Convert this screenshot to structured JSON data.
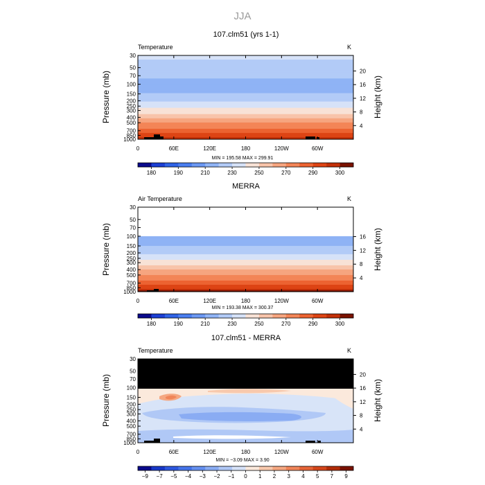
{
  "season": "JJA",
  "chart_data": [
    {
      "type": "heatmap",
      "title": "107.clm51 (yrs 1-1)",
      "left_label": "Temperature",
      "unit": "K",
      "ylabel": "Pressure (mb)",
      "ylabel_right": "Height (km)",
      "x_ticks": [
        "0",
        "60E",
        "120E",
        "180",
        "120W",
        "60W"
      ],
      "y_ticks": [
        "30",
        "50",
        "70",
        "100",
        "150",
        "200",
        "250",
        "300",
        "400",
        "500",
        "700",
        "850",
        "1000"
      ],
      "height_ticks": [
        "4",
        "8",
        "12",
        "16",
        "20"
      ],
      "stats": "MIN = 195.58   MAX = 299.91",
      "min": 195.58,
      "max": 299.91,
      "colorbar_labels": [
        "180",
        "190",
        "210",
        "230",
        "250",
        "270",
        "290",
        "300"
      ],
      "colors": [
        "#0a0a8c",
        "#1c3fd4",
        "#2f63e6",
        "#4a7ef0",
        "#6b98f3",
        "#8fb3f5",
        "#b2cbf7",
        "#d6e2f8",
        "#f8e2d6",
        "#f8c4aa",
        "#f6a57f",
        "#f38557",
        "#ec6331",
        "#dd4414",
        "#c23008",
        "#7a1200"
      ],
      "contour_levels": [
        175,
        180,
        185,
        190,
        200,
        210,
        220,
        230,
        240,
        250,
        260,
        270,
        280,
        290,
        295,
        300
      ],
      "profile": [
        {
          "p": 30,
          "value": 222
        },
        {
          "p": 50,
          "value": 217
        },
        {
          "p": 70,
          "value": 212
        },
        {
          "p": 100,
          "value": 203
        },
        {
          "p": 150,
          "value": 210
        },
        {
          "p": 200,
          "value": 218
        },
        {
          "p": 250,
          "value": 226
        },
        {
          "p": 300,
          "value": 234
        },
        {
          "p": 400,
          "value": 248
        },
        {
          "p": 500,
          "value": 259
        },
        {
          "p": 700,
          "value": 275
        },
        {
          "p": 850,
          "value": 286
        },
        {
          "p": 1000,
          "value": 296
        }
      ],
      "missing_above_p": null
    },
    {
      "type": "heatmap",
      "title": "MERRA",
      "left_label": "Air Temperature",
      "unit": "K",
      "ylabel": "Pressure (mb)",
      "ylabel_right": "Height (km)",
      "x_ticks": [
        "0",
        "60E",
        "120E",
        "180",
        "120W",
        "60W"
      ],
      "y_ticks": [
        "30",
        "50",
        "70",
        "100",
        "150",
        "200",
        "250",
        "300",
        "400",
        "500",
        "700",
        "850",
        "1000"
      ],
      "height_ticks": [
        "4",
        "8",
        "12",
        "16"
      ],
      "stats": "MIN = 193.38   MAX = 300.37",
      "min": 193.38,
      "max": 300.37,
      "colorbar_labels": [
        "180",
        "190",
        "210",
        "230",
        "250",
        "270",
        "290",
        "300"
      ],
      "colors": [
        "#0a0a8c",
        "#1c3fd4",
        "#2f63e6",
        "#4a7ef0",
        "#6b98f3",
        "#8fb3f5",
        "#b2cbf7",
        "#d6e2f8",
        "#f8e2d6",
        "#f8c4aa",
        "#f6a57f",
        "#f38557",
        "#ec6331",
        "#dd4414",
        "#c23008",
        "#7a1200"
      ],
      "contour_levels": [
        175,
        180,
        185,
        190,
        200,
        210,
        220,
        230,
        240,
        250,
        260,
        270,
        280,
        290,
        295,
        300
      ],
      "profile": [
        {
          "p": 100,
          "value": 202
        },
        {
          "p": 150,
          "value": 210
        },
        {
          "p": 200,
          "value": 218
        },
        {
          "p": 250,
          "value": 227
        },
        {
          "p": 300,
          "value": 235
        },
        {
          "p": 400,
          "value": 249
        },
        {
          "p": 500,
          "value": 260
        },
        {
          "p": 700,
          "value": 276
        },
        {
          "p": 850,
          "value": 287
        },
        {
          "p": 1000,
          "value": 297
        }
      ],
      "blank_above_p": 100
    },
    {
      "type": "heatmap",
      "title": "107.clm51 - MERRA",
      "left_label": "Temperature",
      "unit": "K",
      "ylabel": "Pressure (mb)",
      "ylabel_right": "Height (km)",
      "x_ticks": [
        "0",
        "60E",
        "120E",
        "180",
        "120W",
        "60W"
      ],
      "y_ticks": [
        "30",
        "50",
        "70",
        "100",
        "150",
        "200",
        "250",
        "300",
        "400",
        "500",
        "700",
        "850",
        "1000"
      ],
      "height_ticks": [
        "4",
        "8",
        "12",
        "16",
        "20"
      ],
      "stats": "MIN = −3.09   MAX =  3.90",
      "min": -3.09,
      "max": 3.9,
      "colorbar_labels": [
        "−9",
        "−7",
        "−5",
        "−4",
        "−3",
        "−2",
        "−1",
        "0",
        "1",
        "2",
        "3",
        "4",
        "5",
        "7",
        "9"
      ],
      "colors": [
        "#0a0a8c",
        "#1838c8",
        "#2d58df",
        "#4574ea",
        "#6590f0",
        "#8aacf3",
        "#b0c8f6",
        "#d6e2f8",
        "#fbe9dc",
        "#f8c9ad",
        "#f5a781",
        "#f08559",
        "#e66437",
        "#d4461b",
        "#b12c08",
        "#7a1200"
      ],
      "contour_levels": [
        -9,
        -7,
        -5,
        -4,
        -3,
        -2,
        -1,
        0,
        1,
        2,
        3,
        4,
        5,
        7,
        9
      ],
      "missing_above_p": 100
    }
  ]
}
